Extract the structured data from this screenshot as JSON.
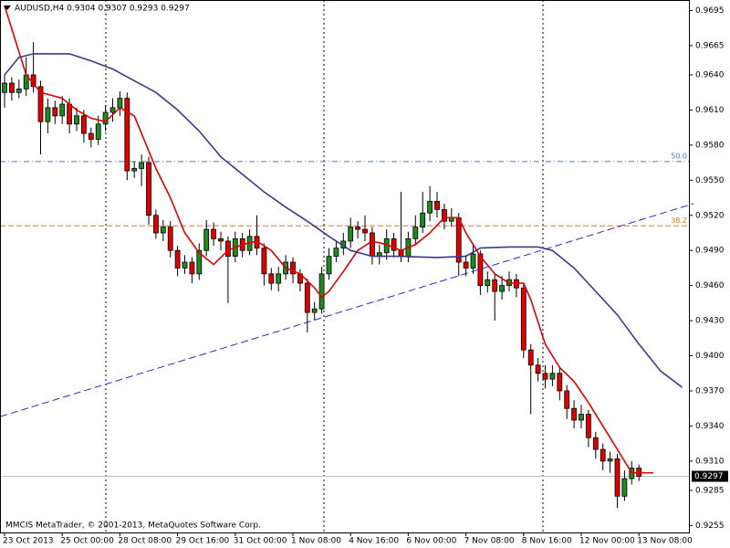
{
  "chart_data": {
    "type": "candlestick",
    "title": "AUDUSD,H4  0.9304 0.9307 0.9293 0.9297",
    "footer": "MMCIS MetaTrader, © 2001-2013, MetaQuotes Software Corp.",
    "categories": [
      "23 Oct 2013",
      null,
      null,
      null,
      null,
      null,
      null,
      null,
      "25 Oct 00:00",
      null,
      null,
      null,
      null,
      null,
      null,
      null,
      "28 Oct 08:00",
      null,
      null,
      null,
      null,
      null,
      null,
      null,
      "29 Oct 16:00",
      null,
      null,
      null,
      null,
      null,
      null,
      null,
      "31 Oct 00:00",
      null,
      null,
      null,
      null,
      null,
      null,
      null,
      "1 Nov 08:00",
      null,
      null,
      null,
      null,
      null,
      null,
      null,
      "4 Nov 16:00",
      null,
      null,
      null,
      null,
      null,
      null,
      null,
      "6 Nov 00:00",
      null,
      null,
      null,
      null,
      null,
      null,
      null,
      "7 Nov 08:00",
      null,
      null,
      null,
      null,
      null,
      null,
      null,
      "8 Nov 16:00",
      null,
      null,
      null,
      null,
      null,
      null,
      null,
      "12 Nov 00:00",
      null,
      null,
      null,
      null,
      null,
      null,
      null,
      "13 Nov 08:00"
    ],
    "open": [
      0.9625,
      0.9633,
      0.9625,
      0.9628,
      0.964,
      0.963,
      0.96,
      0.9612,
      0.9605,
      0.9615,
      0.9598,
      0.9605,
      0.959,
      0.9585,
      0.9598,
      0.9608,
      0.9612,
      0.962,
      0.9558,
      0.956,
      0.9565,
      0.952,
      0.9505,
      0.951,
      0.949,
      0.9475,
      0.948,
      0.947,
      0.949,
      0.9508,
      0.95,
      0.9498,
      0.9485,
      0.95,
      0.949,
      0.9502,
      0.9492,
      0.947,
      0.9462,
      0.947,
      0.948,
      0.947,
      0.9462,
      0.9437,
      0.944,
      0.947,
      0.9485,
      0.9492,
      0.9498,
      0.951,
      0.9508,
      0.9505,
      0.9485,
      0.9488,
      0.95,
      0.949,
      0.9485,
      0.95,
      0.951,
      0.9522,
      0.9532,
      0.9525,
      0.9515,
      0.9518,
      0.948,
      0.9475,
      0.9487,
      0.946,
      0.9465,
      0.9455,
      0.946,
      0.9465,
      0.9458,
      0.9405,
      0.9392,
      0.9385,
      0.938,
      0.9385,
      0.937,
      0.9355,
      0.9345,
      0.935,
      0.933,
      0.932,
      0.931,
      0.9312,
      0.928,
      0.9295,
      0.9304
    ],
    "high": [
      0.964,
      0.9638,
      0.9636,
      0.9655,
      0.9668,
      0.9635,
      0.962,
      0.9618,
      0.9622,
      0.962,
      0.9612,
      0.961,
      0.9595,
      0.9605,
      0.9614,
      0.962,
      0.9626,
      0.9625,
      0.9566,
      0.9572,
      0.957,
      0.9525,
      0.9516,
      0.9515,
      0.9494,
      0.9486,
      0.9484,
      0.9496,
      0.9516,
      0.9514,
      0.9506,
      0.9502,
      0.9506,
      0.9505,
      0.9508,
      0.952,
      0.9496,
      0.9475,
      0.9476,
      0.9486,
      0.9484,
      0.9474,
      0.9466,
      0.9446,
      0.9476,
      0.9492,
      0.9498,
      0.9505,
      0.9518,
      0.9515,
      0.952,
      0.951,
      0.9495,
      0.9508,
      0.9505,
      0.954,
      0.9506,
      0.952,
      0.954,
      0.9545,
      0.954,
      0.953,
      0.9526,
      0.9522,
      0.9486,
      0.9495,
      0.949,
      0.9472,
      0.947,
      0.9468,
      0.9472,
      0.947,
      0.9462,
      0.941,
      0.9398,
      0.9392,
      0.9392,
      0.939,
      0.9375,
      0.9362,
      0.9358,
      0.9354,
      0.9335,
      0.9325,
      0.9318,
      0.9316,
      0.9302,
      0.931,
      0.9307
    ],
    "low": [
      0.9612,
      0.9618,
      0.962,
      0.9622,
      0.9625,
      0.9572,
      0.959,
      0.9598,
      0.9598,
      0.959,
      0.9592,
      0.9582,
      0.9578,
      0.958,
      0.9592,
      0.96,
      0.9605,
      0.955,
      0.9552,
      0.9545,
      0.9512,
      0.95,
      0.9498,
      0.9484,
      0.9468,
      0.947,
      0.9462,
      0.9465,
      0.9485,
      0.9494,
      0.949,
      0.9445,
      0.948,
      0.9484,
      0.9486,
      0.9486,
      0.946,
      0.9456,
      0.9455,
      0.9465,
      0.9462,
      0.9455,
      0.942,
      0.943,
      0.9436,
      0.9465,
      0.948,
      0.9486,
      0.9492,
      0.95,
      0.9498,
      0.9478,
      0.9478,
      0.9482,
      0.9484,
      0.948,
      0.948,
      0.9495,
      0.9505,
      0.9515,
      0.9518,
      0.9508,
      0.951,
      0.9468,
      0.9468,
      0.947,
      0.9452,
      0.9454,
      0.943,
      0.9448,
      0.9455,
      0.945,
      0.9398,
      0.935,
      0.9378,
      0.9372,
      0.9374,
      0.9362,
      0.9346,
      0.9338,
      0.9338,
      0.9322,
      0.9312,
      0.9302,
      0.93,
      0.927,
      0.9276,
      0.929,
      0.9293
    ],
    "close": [
      0.9633,
      0.9625,
      0.9628,
      0.964,
      0.963,
      0.96,
      0.9612,
      0.9605,
      0.9615,
      0.9598,
      0.9605,
      0.959,
      0.9585,
      0.9598,
      0.9608,
      0.9612,
      0.962,
      0.9558,
      0.956,
      0.9565,
      0.952,
      0.9505,
      0.951,
      0.949,
      0.9475,
      0.948,
      0.947,
      0.949,
      0.9508,
      0.95,
      0.9498,
      0.9485,
      0.95,
      0.949,
      0.9502,
      0.9492,
      0.947,
      0.9462,
      0.947,
      0.948,
      0.947,
      0.9462,
      0.9437,
      0.944,
      0.947,
      0.9485,
      0.9492,
      0.9498,
      0.951,
      0.9508,
      0.9505,
      0.9485,
      0.9488,
      0.95,
      0.949,
      0.9485,
      0.95,
      0.951,
      0.9522,
      0.9532,
      0.9525,
      0.9515,
      0.9518,
      0.948,
      0.9475,
      0.9487,
      0.946,
      0.9465,
      0.9455,
      0.946,
      0.9465,
      0.9458,
      0.9405,
      0.9392,
      0.9385,
      0.938,
      0.9385,
      0.937,
      0.9355,
      0.9345,
      0.935,
      0.933,
      0.932,
      0.931,
      0.9312,
      0.928,
      0.9295,
      0.9304,
      0.9297
    ],
    "up_color": "#1f8a1f",
    "down_color": "#e00000",
    "lines": [
      {
        "color": "#e00000",
        "dash": false,
        "x": [
          0,
          3,
          5,
          8,
          10,
          12,
          14,
          16,
          18,
          19,
          21,
          23,
          25,
          27,
          29,
          31,
          33,
          35,
          37,
          39,
          41,
          43,
          44,
          45,
          47,
          49,
          51,
          53,
          55,
          57,
          59,
          61,
          63,
          64,
          66,
          68,
          70,
          72,
          73,
          75,
          77,
          79,
          81,
          83,
          85,
          87,
          89,
          90
        ],
        "values": [
          0.9699,
          0.964,
          0.9625,
          0.962,
          0.961,
          0.9603,
          0.96,
          0.9612,
          0.9605,
          0.959,
          0.956,
          0.9535,
          0.9505,
          0.9488,
          0.9478,
          0.949,
          0.9495,
          0.9498,
          0.949,
          0.9475,
          0.947,
          0.9458,
          0.945,
          0.9455,
          0.9472,
          0.949,
          0.9498,
          0.9495,
          0.949,
          0.9495,
          0.9505,
          0.9518,
          0.9518,
          0.9505,
          0.9485,
          0.947,
          0.9462,
          0.9462,
          0.9448,
          0.941,
          0.939,
          0.9378,
          0.936,
          0.934,
          0.932,
          0.93,
          0.93,
          0.93
        ]
      },
      {
        "color": "#3a3a8c",
        "dash": false,
        "x": [
          0,
          2,
          4,
          9,
          12,
          15,
          18,
          21,
          24,
          27,
          30,
          33,
          36,
          39,
          42,
          45,
          48,
          51,
          54,
          60,
          64,
          66,
          70,
          74,
          76,
          79,
          82,
          85,
          88,
          91,
          94
        ],
        "values": [
          0.964,
          0.9655,
          0.9658,
          0.9658,
          0.9652,
          0.9645,
          0.9635,
          0.9625,
          0.961,
          0.9592,
          0.957,
          0.9555,
          0.954,
          0.9527,
          0.9515,
          0.9502,
          0.949,
          0.9485,
          0.9485,
          0.9484,
          0.9485,
          0.9492,
          0.9493,
          0.9493,
          0.949,
          0.9475,
          0.9455,
          0.9435,
          0.941,
          0.9387,
          0.9373
        ]
      },
      {
        "color": "#2a2ad0",
        "dash": true,
        "x": [
          -0.6,
          95.6
        ],
        "values": [
          0.9348,
          0.953
        ]
      }
    ],
    "levels": [
      {
        "label": "50.0",
        "price": 0.9566,
        "color": "#4a76b8"
      },
      {
        "label": "38.2",
        "price": 0.9511,
        "color": "#e07030"
      }
    ],
    "last_price": 0.9297,
    "ylim": [
      0.9249,
      0.9704
    ],
    "yticks": [
      0.9695,
      0.9665,
      {
        "value": 0.964,
        "label": "0.9640"
      },
      {
        "value": 0.961,
        "label": "0.9610"
      },
      {
        "value": 0.958,
        "label": "0.9580"
      },
      {
        "value": 0.955,
        "label": "0.9550"
      },
      {
        "value": 0.952,
        "label": "0.9520"
      },
      {
        "value": 0.949,
        "label": "0.9490"
      },
      {
        "value": 0.946,
        "label": "0.9460"
      },
      {
        "value": 0.943,
        "label": "0.9430"
      },
      {
        "value": 0.94,
        "label": "0.9400"
      },
      {
        "value": 0.937,
        "label": "0.9370"
      },
      {
        "value": 0.934,
        "label": "0.9340"
      },
      {
        "value": 0.931,
        "label": "0.9310"
      },
      0.9285,
      0.9255
    ]
  }
}
